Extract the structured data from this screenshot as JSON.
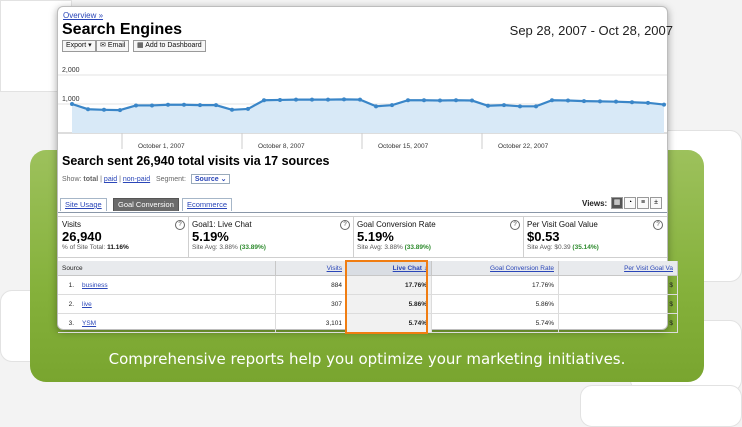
{
  "report": {
    "breadcrumb": "Overview »",
    "title": "Search Engines",
    "date_range": "Sep 28, 2007 - Oct 28, 2007",
    "toolbar": {
      "export": "Export ▾",
      "email": "Email",
      "add_dashboard": "Add to Dashboard"
    }
  },
  "chart_data": {
    "type": "line",
    "ylabels": [
      "2,000",
      "1,000"
    ],
    "xlabels": [
      "October 1, 2007",
      "October 8, 2007",
      "October 15, 2007",
      "October 22, 2007"
    ],
    "ylim": [
      0,
      2000
    ],
    "values": [
      1000,
      820,
      800,
      790,
      950,
      950,
      975,
      975,
      960,
      960,
      800,
      830,
      1130,
      1140,
      1150,
      1150,
      1150,
      1160,
      1150,
      920,
      960,
      1130,
      1130,
      1120,
      1130,
      1120,
      940,
      960,
      920,
      920,
      1130,
      1120,
      1100,
      1090,
      1080,
      1060,
      1040,
      980
    ],
    "color": "#3a86c8",
    "fill": "#d8e9f7"
  },
  "summary": {
    "headline": "Search sent 26,940 total visits via 17 sources",
    "show_label": "Show:",
    "show_total": "total",
    "show_paid": "paid",
    "show_nonpaid": "non-paid",
    "segment_label": "Segment:",
    "segment_value": "Source"
  },
  "tabs": {
    "site_usage": "Site Usage",
    "goal_conversion": "Goal Conversion",
    "ecommerce": "Ecommerce",
    "views_label": "Views:"
  },
  "metrics": [
    {
      "label": "Visits",
      "value": "26,940",
      "sub_prefix": "% of Site Total:",
      "sub_value": "11.16%",
      "sub_green": ""
    },
    {
      "label": "Goal1: Live Chat",
      "value": "5.19%",
      "sub_prefix": "Site Avg: 3.88%",
      "sub_value": "",
      "sub_green": "(33.89%)"
    },
    {
      "label": "Goal Conversion Rate",
      "value": "5.19%",
      "sub_prefix": "Site Avg: 3.88%",
      "sub_value": "",
      "sub_green": "(33.89%)"
    },
    {
      "label": "Per Visit Goal Value",
      "value": "$0.53",
      "sub_prefix": "Site Avg: $0.39",
      "sub_value": "",
      "sub_green": "(35.14%)"
    }
  ],
  "table": {
    "headers": {
      "source": "Source",
      "visits": "Visits",
      "live_chat": "Live Chat",
      "gcr": "Goal Conversion Rate",
      "pvgv": "Per Visit Goal Va"
    },
    "rows": [
      {
        "n": "1.",
        "source": "business",
        "visits": "884",
        "live_chat": "17.76%",
        "gcr": "17.76%",
        "pvgv": "$"
      },
      {
        "n": "2.",
        "source": "live",
        "visits": "307",
        "live_chat": "5.86%",
        "gcr": "5.86%",
        "pvgv": "$"
      },
      {
        "n": "3.",
        "source": "YSM",
        "visits": "3,101",
        "live_chat": "5.74%",
        "gcr": "5.74%",
        "pvgv": "$"
      }
    ]
  },
  "caption": "Comprehensive reports help you optimize your marketing initiatives."
}
